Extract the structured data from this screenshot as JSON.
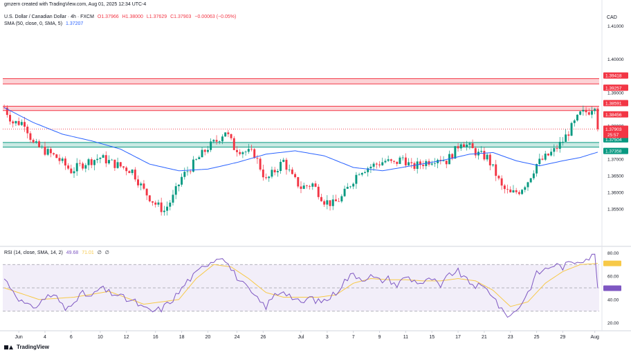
{
  "watermark": "gmzern created with TradingView.com, Aug 01, 2025 12:34 UTC-4",
  "instrument": {
    "name": "U.S. Dollar / Canadian Dollar · 4h · FXCM",
    "open": "O1.37966",
    "high": "H1.38000",
    "low": "L1.37629",
    "close": "C1.37903",
    "change": "−0.00063 (−0.05%)"
  },
  "sma_label": {
    "title": "SMA (50, close, 0, SMA, 5)",
    "value": "1.37207"
  },
  "rsi_label": {
    "title": "RSI (14, close, SMA, 14, 2)",
    "value": "49.68",
    "sma_value": "71.01",
    "extra1": "∅",
    "extra2": "∅"
  },
  "currency": "CAD",
  "footer": {
    "brand": "TradingView"
  },
  "colors": {
    "up": "#089981",
    "down": "#f23645",
    "sma": "#2962ff",
    "rsi": "#7e57c2",
    "rsi_sma": "#f7c948",
    "resistance_zone": "#f23645",
    "support_zone": "#089981"
  },
  "chart_data": [
    {
      "type": "candlestick",
      "name": "USD/CAD 4h",
      "ylim": [
        1.344,
        1.412
      ],
      "yticks": [
        "1.41000",
        "1.40000",
        "1.39000",
        "1.38000",
        "1.37000",
        "1.36500",
        "1.36000",
        "1.35500"
      ],
      "ytick_values": [
        1.41,
        1.4,
        1.39,
        1.38,
        1.37,
        1.365,
        1.36,
        1.355
      ],
      "xticks": [
        "Jun",
        "4",
        "6",
        "10",
        "12",
        "16",
        "18",
        "20",
        "24",
        "26",
        "Jul",
        "3",
        "7",
        "9",
        "11",
        "15",
        "17",
        "21",
        "23",
        "25",
        "29",
        "Aug"
      ],
      "xtick_index": [
        5,
        14,
        23,
        33,
        42,
        52,
        61,
        70,
        80,
        89,
        102,
        111,
        120,
        129,
        138,
        147,
        156,
        165,
        174,
        183,
        192,
        203
      ],
      "candle_count": 205,
      "key_points": [
        [
          0,
          1.3855
        ],
        [
          3,
          1.381
        ],
        [
          7,
          1.381
        ],
        [
          10,
          1.3745
        ],
        [
          14,
          1.3725
        ],
        [
          18,
          1.3705
        ],
        [
          23,
          1.3665
        ],
        [
          28,
          1.369
        ],
        [
          33,
          1.3705
        ],
        [
          38,
          1.3685
        ],
        [
          44,
          1.3665
        ],
        [
          48,
          1.3605
        ],
        [
          52,
          1.3565
        ],
        [
          55,
          1.3545
        ],
        [
          58,
          1.3585
        ],
        [
          61,
          1.3645
        ],
        [
          64,
          1.3675
        ],
        [
          67,
          1.3705
        ],
        [
          70,
          1.3735
        ],
        [
          73,
          1.3755
        ],
        [
          76,
          1.3785
        ],
        [
          79,
          1.3735
        ],
        [
          82,
          1.3725
        ],
        [
          86,
          1.3715
        ],
        [
          90,
          1.3635
        ],
        [
          94,
          1.3675
        ],
        [
          96,
          1.3695
        ],
        [
          99,
          1.3645
        ],
        [
          102,
          1.3615
        ],
        [
          106,
          1.3625
        ],
        [
          110,
          1.3575
        ],
        [
          113,
          1.3565
        ],
        [
          116,
          1.3585
        ],
        [
          119,
          1.3625
        ],
        [
          122,
          1.3665
        ],
        [
          125,
          1.3675
        ],
        [
          128,
          1.3685
        ],
        [
          131,
          1.3695
        ],
        [
          134,
          1.3685
        ],
        [
          137,
          1.3705
        ],
        [
          140,
          1.3675
        ],
        [
          143,
          1.3685
        ],
        [
          146,
          1.3695
        ],
        [
          149,
          1.3705
        ],
        [
          152,
          1.3695
        ],
        [
          155,
          1.3725
        ],
        [
          157,
          1.3755
        ],
        [
          160,
          1.3735
        ],
        [
          163,
          1.3715
        ],
        [
          166,
          1.3705
        ],
        [
          169,
          1.3655
        ],
        [
          171,
          1.3615
        ],
        [
          174,
          1.3595
        ],
        [
          177,
          1.3605
        ],
        [
          180,
          1.3635
        ],
        [
          183,
          1.3685
        ],
        [
          186,
          1.3705
        ],
        [
          189,
          1.3725
        ],
        [
          192,
          1.3755
        ],
        [
          195,
          1.3795
        ],
        [
          198,
          1.3835
        ],
        [
          201,
          1.3845
        ],
        [
          203,
          1.3865
        ],
        [
          204,
          1.379
        ]
      ],
      "sma_points": [
        [
          0,
          1.3855
        ],
        [
          10,
          1.381
        ],
        [
          20,
          1.3775
        ],
        [
          30,
          1.3755
        ],
        [
          40,
          1.373
        ],
        [
          50,
          1.3685
        ],
        [
          60,
          1.3665
        ],
        [
          70,
          1.367
        ],
        [
          80,
          1.369
        ],
        [
          90,
          1.3715
        ],
        [
          100,
          1.3725
        ],
        [
          110,
          1.371
        ],
        [
          120,
          1.3675
        ],
        [
          130,
          1.3665
        ],
        [
          140,
          1.368
        ],
        [
          150,
          1.3695
        ],
        [
          160,
          1.3715
        ],
        [
          168,
          1.372
        ],
        [
          176,
          1.3695
        ],
        [
          184,
          1.368
        ],
        [
          192,
          1.3695
        ],
        [
          198,
          1.3705
        ],
        [
          204,
          1.3721
        ]
      ],
      "zones": [
        {
          "top": 1.3942,
          "bottom": 1.3926,
          "top_label": "1.39418",
          "bottom_label": "1.39257",
          "kind": "resistance"
        },
        {
          "top": 1.3859,
          "bottom": 1.3846,
          "top_label": "1.38591",
          "bottom_label": "1.38456",
          "kind": "resistance"
        },
        {
          "top": 1.375,
          "bottom": 1.3736,
          "top_label": "1.37504",
          "bottom_label": "1.37358",
          "kind": "support"
        }
      ],
      "last_price": {
        "value": 1.37903,
        "label": "1.37903",
        "countdown": "25:57"
      }
    },
    {
      "type": "line",
      "name": "RSI",
      "ylim": [
        15,
        85
      ],
      "yticks": [
        "80.00",
        "60.00",
        "40.00",
        "20.00"
      ],
      "ytick_values": [
        80,
        60,
        40,
        20
      ],
      "bands": [
        70,
        50,
        30
      ],
      "rsi_points": [
        [
          0,
          58
        ],
        [
          3,
          48
        ],
        [
          6,
          38
        ],
        [
          9,
          33
        ],
        [
          12,
          36
        ],
        [
          15,
          44
        ],
        [
          18,
          42
        ],
        [
          21,
          31
        ],
        [
          24,
          40
        ],
        [
          27,
          45
        ],
        [
          30,
          42
        ],
        [
          33,
          50
        ],
        [
          36,
          46
        ],
        [
          39,
          44
        ],
        [
          42,
          40
        ],
        [
          45,
          38
        ],
        [
          48,
          32
        ],
        [
          51,
          30
        ],
        [
          54,
          32
        ],
        [
          57,
          38
        ],
        [
          60,
          46
        ],
        [
          63,
          56
        ],
        [
          66,
          62
        ],
        [
          69,
          70
        ],
        [
          72,
          74
        ],
        [
          75,
          78
        ],
        [
          78,
          66
        ],
        [
          81,
          56
        ],
        [
          84,
          48
        ],
        [
          87,
          40
        ],
        [
          90,
          34
        ],
        [
          93,
          44
        ],
        [
          96,
          48
        ],
        [
          99,
          42
        ],
        [
          102,
          36
        ],
        [
          105,
          42
        ],
        [
          108,
          38
        ],
        [
          111,
          40
        ],
        [
          114,
          46
        ],
        [
          117,
          56
        ],
        [
          120,
          62
        ],
        [
          123,
          58
        ],
        [
          126,
          60
        ],
        [
          129,
          56
        ],
        [
          132,
          58
        ],
        [
          135,
          52
        ],
        [
          138,
          60
        ],
        [
          141,
          56
        ],
        [
          144,
          54
        ],
        [
          147,
          58
        ],
        [
          150,
          50
        ],
        [
          153,
          62
        ],
        [
          156,
          64
        ],
        [
          159,
          56
        ],
        [
          162,
          52
        ],
        [
          165,
          50
        ],
        [
          168,
          44
        ],
        [
          171,
          30
        ],
        [
          174,
          26
        ],
        [
          177,
          34
        ],
        [
          180,
          46
        ],
        [
          183,
          62
        ],
        [
          186,
          66
        ],
        [
          189,
          70
        ],
        [
          192,
          68
        ],
        [
          195,
          72
        ],
        [
          198,
          74
        ],
        [
          201,
          76
        ],
        [
          203,
          78
        ],
        [
          204,
          49.7
        ]
      ],
      "rsi_sma_points": [
        [
          0,
          50
        ],
        [
          12,
          40
        ],
        [
          24,
          42
        ],
        [
          36,
          47
        ],
        [
          48,
          36
        ],
        [
          60,
          40
        ],
        [
          66,
          58
        ],
        [
          72,
          70
        ],
        [
          78,
          68
        ],
        [
          84,
          58
        ],
        [
          90,
          46
        ],
        [
          96,
          42
        ],
        [
          102,
          42
        ],
        [
          108,
          42
        ],
        [
          114,
          44
        ],
        [
          120,
          54
        ],
        [
          126,
          58
        ],
        [
          132,
          57
        ],
        [
          138,
          57
        ],
        [
          144,
          56
        ],
        [
          150,
          56
        ],
        [
          156,
          58
        ],
        [
          162,
          56
        ],
        [
          168,
          48
        ],
        [
          174,
          34
        ],
        [
          180,
          38
        ],
        [
          186,
          54
        ],
        [
          192,
          64
        ],
        [
          198,
          70
        ],
        [
          204,
          71
        ]
      ]
    }
  ]
}
